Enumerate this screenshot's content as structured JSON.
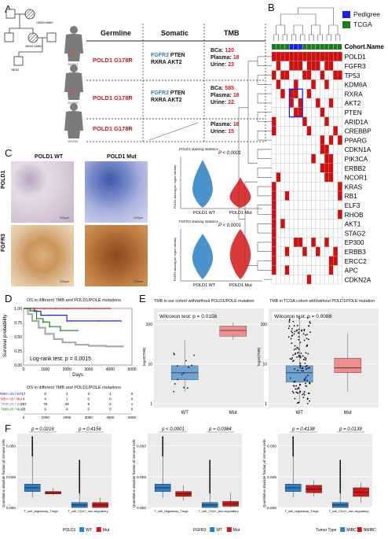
{
  "panels": {
    "A": "A",
    "B": "B",
    "C": "C",
    "D": "D",
    "E": "E",
    "F": "F"
  },
  "panelA": {
    "headers": [
      "Germline",
      "Somatic",
      "TMB"
    ],
    "pedigree_labels": [
      "130500 NMIBC",
      "260301 NMIBC",
      "260301"
    ],
    "rows": [
      {
        "germline": "POLD1 G178R",
        "somatic_l1a": "FGFR3",
        "somatic_l1b": " PTEN",
        "somatic_l2": "RXRA AKT2",
        "tmb": [
          {
            "label": "BCa:",
            "value": "120"
          },
          {
            "label": "Plasma:",
            "value": "18"
          },
          {
            "label": "Urine:",
            "value": "23"
          }
        ],
        "patient_id": "260301"
      },
      {
        "germline": "POLD1 G178R",
        "somatic_l1a": "FGFR3",
        "somatic_l1b": " PTEN",
        "somatic_l2": "RXRA AKT2",
        "tmb": [
          {
            "label": "BCa:",
            "value": "585"
          },
          {
            "label": "Plasma:",
            "value": "18"
          },
          {
            "label": "Urine:",
            "value": "22"
          }
        ],
        "patient_id": "260303"
      },
      {
        "germline": "POLD1 G178R",
        "somatic_l1a": "",
        "somatic_l1b": "",
        "somatic_l2": "",
        "tmb": [
          {
            "label": "Plasma:",
            "value": "16"
          },
          {
            "label": "Urine:",
            "value": "15"
          }
        ],
        "patient_id": "260305"
      }
    ]
  },
  "panelB": {
    "legend": [
      {
        "label": "Pedigree",
        "color": "#1d21e6"
      },
      {
        "label": "TCGA",
        "color": "#1e7a1e"
      }
    ],
    "cohort_label": "Cohort.Name",
    "genes": [
      "POLD1",
      "FGFR3",
      "TP53",
      "KDM6A",
      "RXRA",
      "AKT2",
      "PTEN",
      "ARID1A",
      "CREBBP",
      "PPARG",
      "CDKN1A",
      "PIK3CA",
      "ERBB2",
      "NCOR1",
      "KRAS",
      "RB1",
      "ELF3",
      "RHOB",
      "AKT1",
      "STAG2",
      "EP300",
      "ERBB3",
      "ERCC2",
      "APC",
      "CDKN2A"
    ],
    "cohort": [
      "T",
      "T",
      "T",
      "T",
      "P",
      "P",
      "P",
      "T",
      "T",
      "T",
      "T",
      "T",
      "T",
      "T",
      "T",
      "T"
    ],
    "mutations": [
      [
        0,
        1,
        2,
        3,
        4,
        5,
        6,
        7,
        8,
        9,
        10,
        11,
        12,
        13,
        14,
        15
      ],
      [
        1,
        4,
        5,
        6,
        8,
        9,
        10,
        12,
        13
      ],
      [
        0,
        2,
        3,
        7,
        8,
        11,
        14,
        15
      ],
      [
        1,
        5,
        9,
        12
      ],
      [
        2,
        4,
        5,
        8
      ],
      [
        4,
        6,
        10,
        13
      ],
      [
        5,
        6,
        11
      ],
      [
        0,
        7,
        12
      ],
      [
        0,
        8,
        14
      ],
      [
        11,
        13,
        15
      ],
      [
        11,
        12
      ],
      [
        9,
        12,
        13
      ],
      [
        11,
        12,
        13
      ],
      [
        1,
        12,
        13
      ],
      [
        0,
        15
      ],
      [
        0,
        3,
        15
      ],
      [
        0
      ],
      [
        0,
        15
      ],
      [
        0,
        2
      ],
      [
        0
      ],
      [
        0,
        5,
        6,
        9,
        12
      ],
      [
        0,
        3,
        7,
        10,
        14
      ],
      [
        0,
        13,
        14
      ],
      [
        0,
        3,
        13
      ],
      [
        8
      ]
    ],
    "colors": {
      "mut": "#d10f0f",
      "none": "#ffffff",
      "grid": "#b0b0b0"
    }
  },
  "panelC": {
    "col_labels": [
      "POLD1 WT",
      "POLD1 Mut"
    ],
    "row_labels": [
      "POLD1",
      "FGFR3"
    ],
    "scale_bars": [
      "100μm",
      "100μm",
      "100μm",
      "100μm"
    ],
    "violins": [
      {
        "title": "POLD1 staining statistics",
        "p": "P < 0.0001",
        "groups": [
          "POLD1 WT",
          "POLD1 Mut"
        ],
        "ylabel": "POLD1 staining per region intensity",
        "colors": [
          "#2c7fc2",
          "#d11717"
        ]
      },
      {
        "title": "FGFR3 staining statistics",
        "p": "P < 0.0001",
        "groups": [
          "POLD1 WT",
          "POLD1 Mut"
        ],
        "ylabel": "FGFR3 staining per region intensity",
        "colors": [
          "#2c7fc2",
          "#d11717"
        ]
      }
    ]
  },
  "panelD": {
    "title": "OS in different TMB and POLD1/POLE mutations",
    "ylabel": "Survival probability",
    "xlabel": "Days",
    "logrank": "Log-rank test: p = 0.0015",
    "yticks": [
      "0.00",
      "0.25",
      "0.50",
      "0.75",
      "1.00"
    ],
    "xticks": [
      "0",
      "1000",
      "2000",
      "3000",
      "4000",
      "5000"
    ],
    "risk_title": "OS in different TMB and POLD1/POLE mutations",
    "risk_rows": [
      {
        "label": "TMB>=20 / WT",
        "color": "#1d21e6",
        "vals": [
          "17",
          "8",
          "4",
          "2",
          "1",
          "0"
        ]
      },
      {
        "label": "TMB>=20 / Mut",
        "color": "#d11717",
        "vals": [
          "4",
          "4",
          "1",
          "0",
          "0",
          "0"
        ]
      },
      {
        "label": "TMB<20 / WT",
        "color": "#888888",
        "vals": [
          "257",
          "75",
          "26",
          "9",
          "2",
          "1"
        ]
      },
      {
        "label": "TMB<20 / Mut",
        "color": "#1e7a1e",
        "vals": [
          "28",
          "9",
          "4",
          "0",
          "0",
          "0"
        ]
      }
    ],
    "risk_xticks": [
      "0",
      "1000",
      "2000",
      "3000",
      "4000",
      "5000"
    ],
    "chart_data": {
      "type": "line",
      "xlabel": "Days",
      "ylabel": "Survival probability",
      "xlim": [
        0,
        5000
      ],
      "ylim": [
        0,
        1
      ],
      "series": [
        {
          "name": "TMB>=20 / WT",
          "color": "#1d21e6",
          "x": [
            0,
            300,
            500,
            800,
            1200,
            2000,
            2200,
            3500,
            4500
          ],
          "y": [
            1.0,
            1.0,
            0.95,
            0.88,
            0.88,
            0.78,
            0.78,
            0.78,
            0.78
          ]
        },
        {
          "name": "TMB>=20 / Mut",
          "color": "#d11717",
          "x": [
            0,
            500,
            1000,
            1500,
            2000,
            3000,
            4000
          ],
          "y": [
            1.0,
            1.0,
            1.0,
            1.0,
            1.0,
            1.0,
            1.0
          ]
        },
        {
          "name": "TMB<20 / WT",
          "color": "#aaaaaa",
          "x": [
            0,
            200,
            400,
            700,
            1000,
            1400,
            1800,
            2400,
            3000,
            3800,
            4600
          ],
          "y": [
            1.0,
            0.9,
            0.78,
            0.66,
            0.55,
            0.46,
            0.4,
            0.36,
            0.34,
            0.33,
            0.33
          ]
        },
        {
          "name": "TMB<20 / Mut",
          "color": "#1e7a1e",
          "x": [
            0,
            300,
            600,
            900,
            1200,
            1700,
            2500
          ],
          "y": [
            1.0,
            0.96,
            0.82,
            0.76,
            0.68,
            0.61,
            0.61
          ]
        }
      ]
    }
  },
  "panelE": {
    "left": {
      "title": "TMB in our cohort with/without POLD1/POLE mutation",
      "test": "Wilcoxon test: p = 0.0156",
      "ylabel": "log10(TMB)",
      "yticks": [
        "100",
        "10",
        "1"
      ],
      "groups": [
        "WT",
        "Mut"
      ],
      "colors": [
        "#6fa3d3",
        "#ef8c8c"
      ]
    },
    "right": {
      "title": "TMB in TCGA cohort with/without POLD1/POLE mutation",
      "test": "Wilcoxon test: p = 0.0088",
      "ylabel": "log10(TMB)",
      "yticks": [
        "100",
        "10",
        "1"
      ],
      "groups": [
        "WT",
        "Mut"
      ],
      "colors": [
        "#6fa3d3",
        "#ef8c8c"
      ]
    },
    "chart_data": [
      {
        "type": "box",
        "title": "TMB in our cohort with/without POLD1/POLE mutation",
        "categories": [
          "WT",
          "Mut"
        ],
        "median": [
          6,
          70
        ],
        "q1": [
          4,
          50
        ],
        "q3": [
          9,
          90
        ],
        "min": [
          2,
          40
        ],
        "max": [
          40,
          110
        ]
      },
      {
        "type": "box",
        "title": "TMB in TCGA cohort with/without POLD1/POLE mutation",
        "categories": [
          "WT",
          "Mut"
        ],
        "median": [
          6,
          8
        ],
        "q1": [
          3.5,
          6
        ],
        "q3": [
          9,
          14
        ],
        "min": [
          1,
          2
        ],
        "max": [
          150,
          60
        ]
      }
    ]
  },
  "panelF": {
    "ylabel": "Quantitative absolute fraction of immune cells",
    "plots": [
      {
        "p1": "p = 0.0216",
        "p2": "p = 0.4156",
        "xlabels": [
          "T_cell_regulatory_Tregs",
          "T_cell_CD4+_non-regulatory"
        ],
        "legend_title": "POLD1",
        "legend": [
          {
            "label": "WT",
            "color": "#2c7fc2"
          },
          {
            "label": "Mut",
            "color": "#d11717"
          }
        ],
        "yticks": [
          "0.000",
          "0.025",
          "0.050",
          "0.075"
        ]
      },
      {
        "p1": "p < 0.0001",
        "p2": "p = 0.0384",
        "xlabels": [
          "T_cell_regulatory_Tregs",
          "T_cell_CD4+_non-regulatory"
        ],
        "legend_title": "FGFR3",
        "legend": [
          {
            "label": "WT",
            "color": "#2c7fc2"
          },
          {
            "label": "Mut",
            "color": "#d11717"
          }
        ],
        "yticks": [
          "0.000",
          "0.025",
          "0.050",
          "0.075"
        ]
      },
      {
        "p1": "p = 0.4138",
        "p2": "p = 0.0139",
        "xlabels": [
          "T_cell_regulatory_Tregs",
          "T_cell_CD4+_non-regulatory"
        ],
        "legend_title": "Tumor Type",
        "legend": [
          {
            "label": "MIBC",
            "color": "#2c7fc2"
          },
          {
            "label": "NMIBC",
            "color": "#d11717"
          }
        ],
        "yticks": [
          "0.000",
          "0.025",
          "0.050",
          "0.075"
        ]
      }
    ]
  }
}
